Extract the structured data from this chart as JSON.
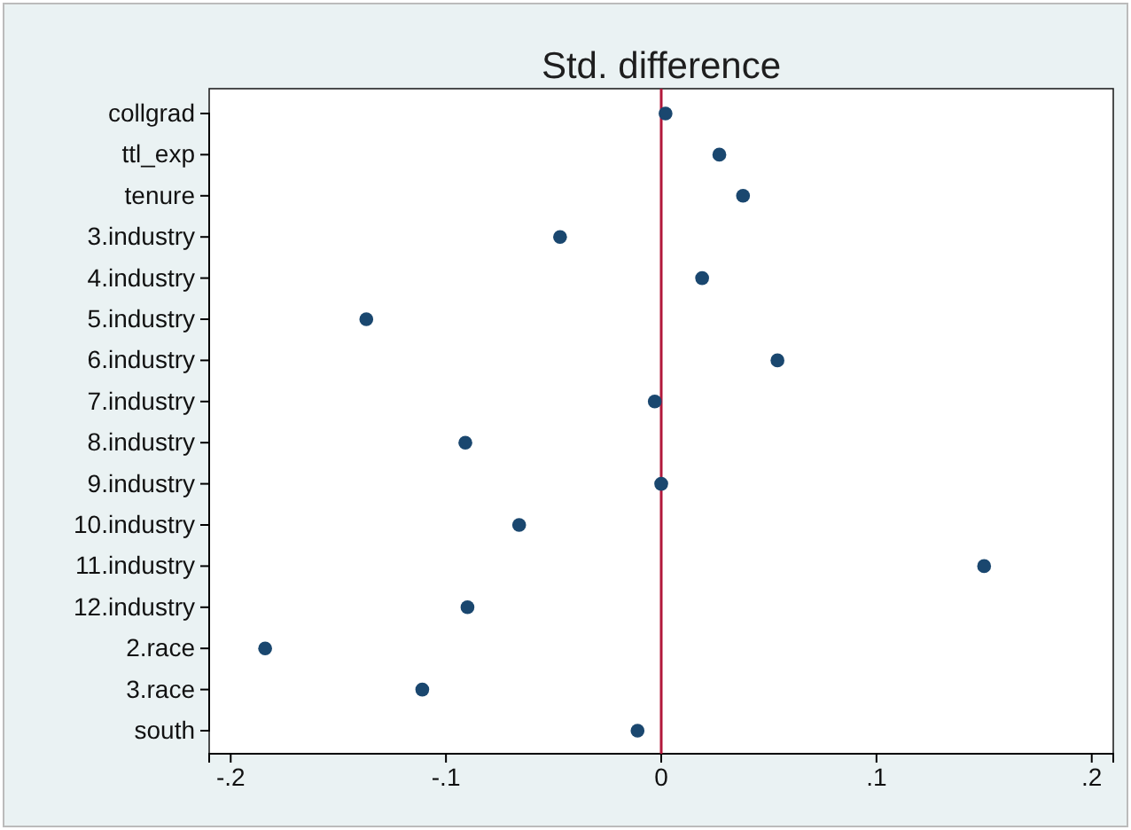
{
  "chart_data": {
    "type": "scatter",
    "orientation": "horizontal",
    "title": "Std. difference",
    "categories": [
      "collgrad",
      "ttl_exp",
      "tenure",
      "3.industry",
      "4.industry",
      "5.industry",
      "6.industry",
      "7.industry",
      "8.industry",
      "9.industry",
      "10.industry",
      "11.industry",
      "12.industry",
      "2.race",
      "3.race",
      "south"
    ],
    "values": [
      0.002,
      0.027,
      0.038,
      -0.047,
      0.019,
      -0.137,
      0.054,
      -0.003,
      -0.091,
      0.0,
      -0.066,
      0.15,
      -0.09,
      -0.184,
      -0.111,
      -0.011
    ],
    "color": "#1a476f",
    "marker": "circle",
    "xlim": [
      -0.21,
      0.21
    ],
    "xticks": [
      {
        "value": -0.2,
        "label": "-.2"
      },
      {
        "value": -0.1,
        "label": "-.1"
      },
      {
        "value": 0,
        "label": "0"
      },
      {
        "value": 0.1,
        "label": ".1"
      },
      {
        "value": 0.2,
        "label": ".2"
      }
    ],
    "ref_lines": [
      {
        "axis": "x",
        "value": 0,
        "color": "#b2183b"
      }
    ],
    "grid": false
  }
}
